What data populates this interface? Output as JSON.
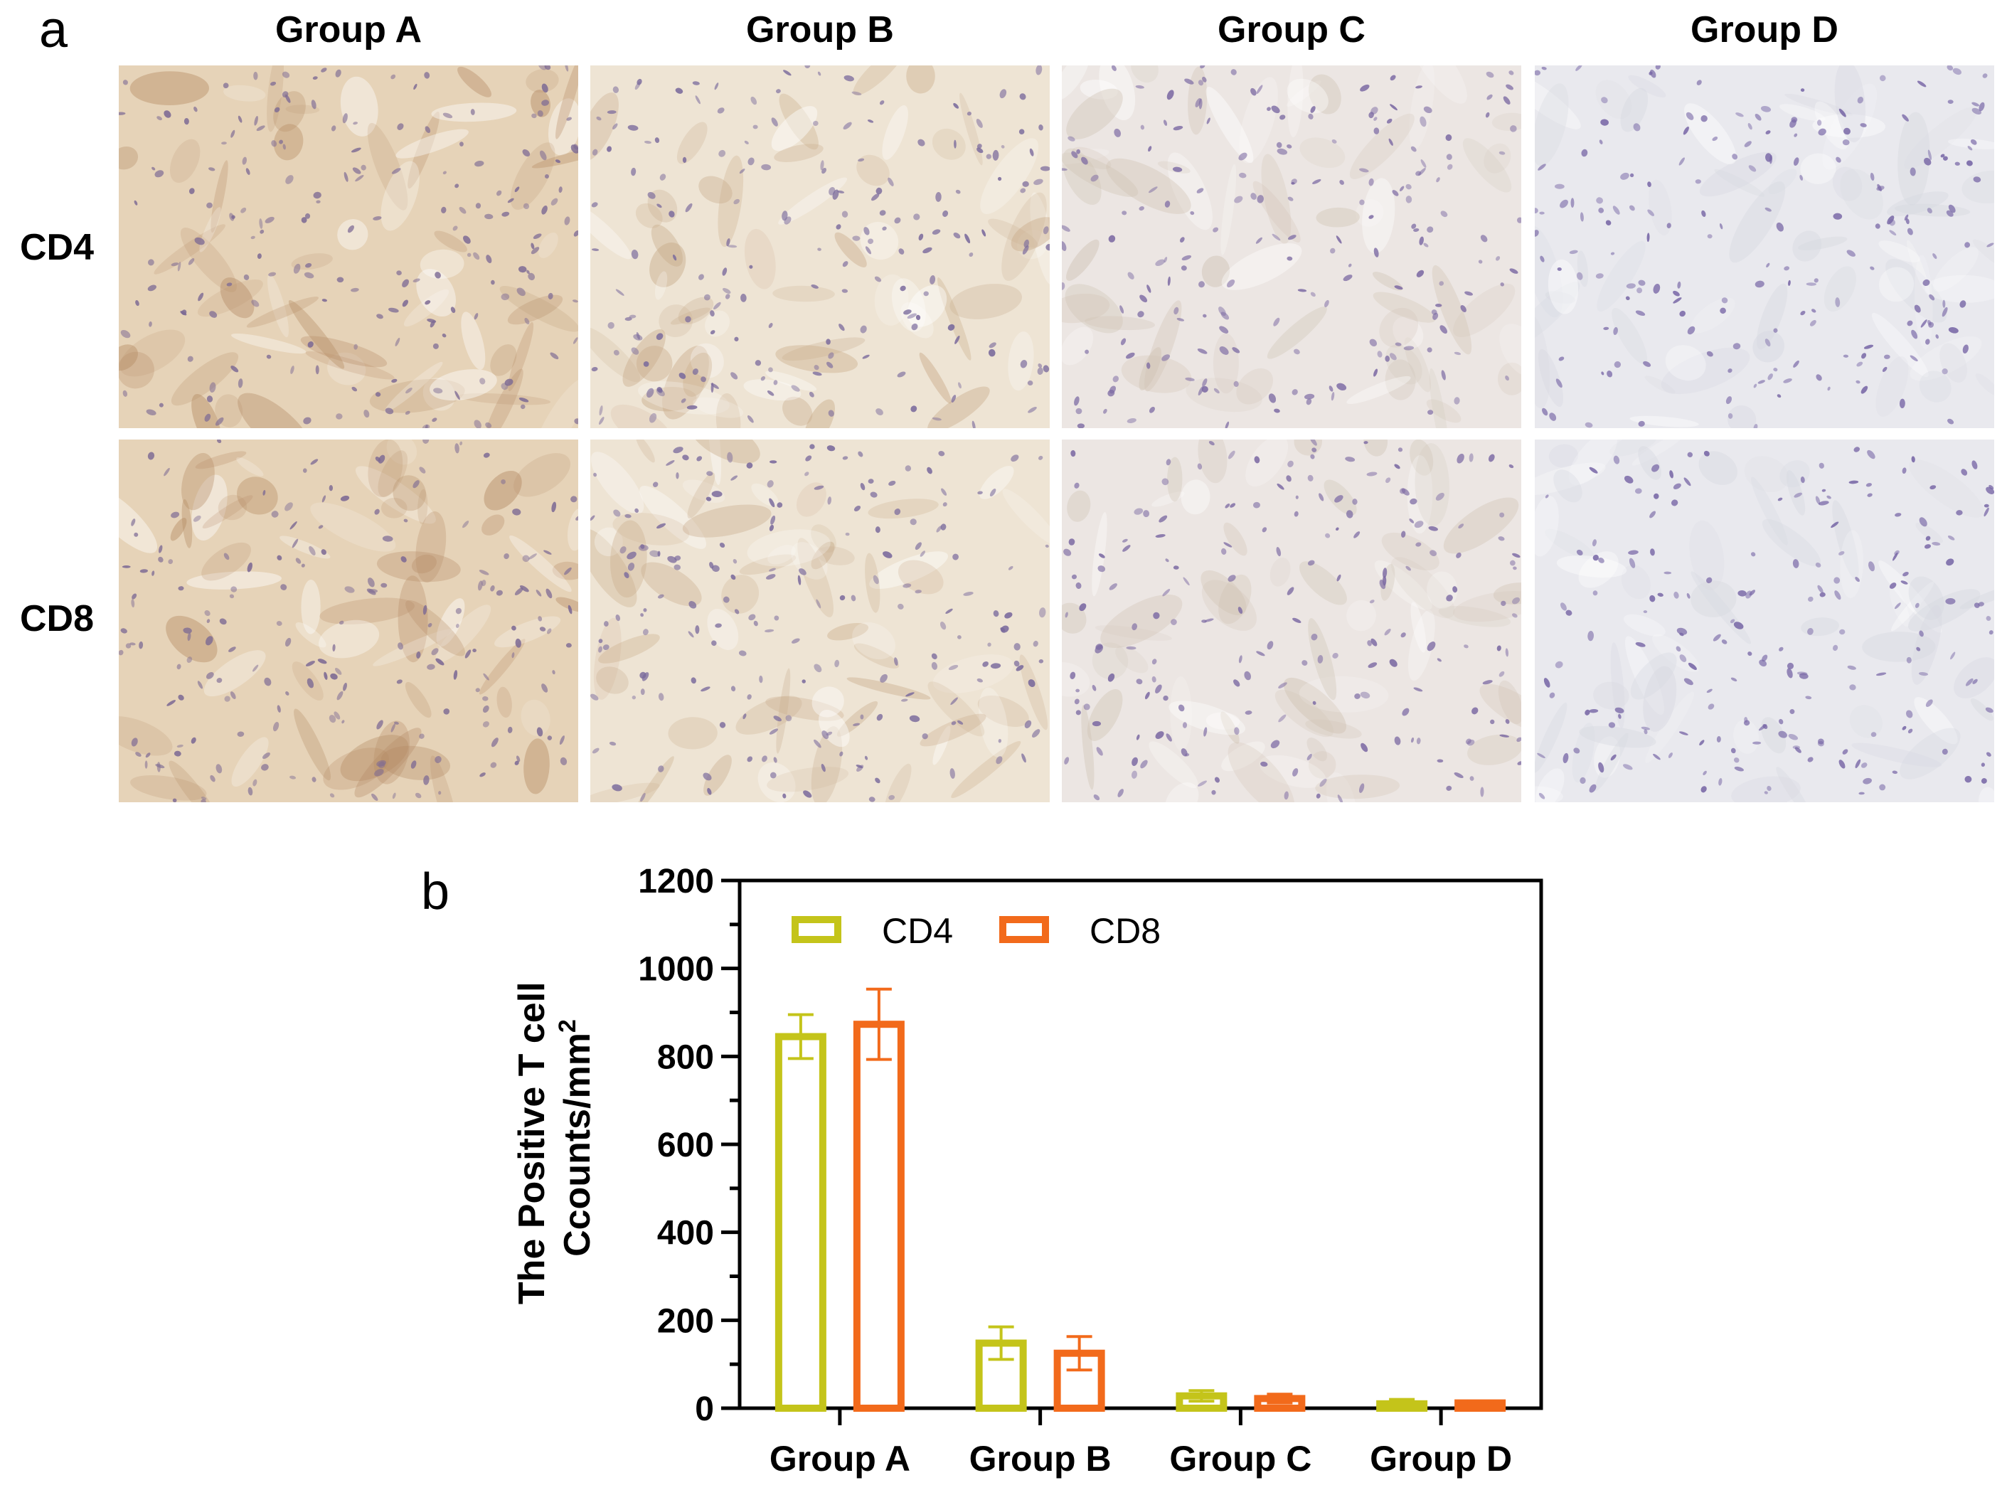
{
  "panel_a": {
    "letter": "a",
    "columns": [
      "Group A",
      "Group B",
      "Group C",
      "Group D"
    ],
    "rows": [
      "CD4",
      "CD8"
    ],
    "tints": {
      "Group A": {
        "bg": "#e6d3b8",
        "stain": "#b48a63",
        "nuclei": "#7d6a94"
      },
      "Group B": {
        "bg": "#eee4d4",
        "stain": "#c7a987",
        "nuclei": "#7a6a9c"
      },
      "Group C": {
        "bg": "#ece6e3",
        "stain": "#cfc2b2",
        "nuclei": "#7c6aa3"
      },
      "Group D": {
        "bg": "#e9e9ee",
        "stain": "#d6d8e0",
        "nuclei": "#7867a6"
      }
    }
  },
  "panel_b": {
    "letter": "b"
  },
  "chart_data": {
    "type": "bar",
    "categories": [
      "Group A",
      "Group B",
      "Group C",
      "Group D"
    ],
    "series": [
      {
        "name": "CD4",
        "values": [
          845,
          148,
          28,
          10
        ],
        "error": [
          50,
          37,
          12,
          10
        ],
        "color": "#c4c41a"
      },
      {
        "name": "CD8",
        "values": [
          873,
          125,
          22,
          12
        ],
        "error": [
          80,
          38,
          10,
          4
        ],
        "color": "#f26a1b"
      }
    ],
    "ylabel_line1": "The Positive T cell",
    "ylabel_line2": "Ccounts/mm",
    "ylabel_sup": "2",
    "ylim": [
      0,
      1200
    ],
    "yticks": [
      0,
      200,
      400,
      600,
      800,
      1000,
      1200
    ],
    "legend_position": "top-left",
    "grid": false
  }
}
